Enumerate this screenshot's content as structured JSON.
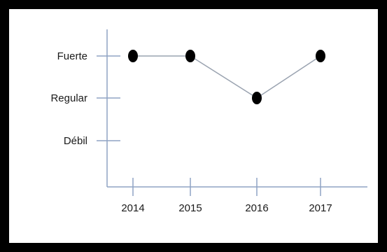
{
  "chart_data": {
    "type": "line",
    "categories": [
      "2014",
      "2015",
      "2016",
      "2017"
    ],
    "y_levels": [
      "Débil",
      "Regular",
      "Fuerte"
    ],
    "values": [
      "Fuerte",
      "Fuerte",
      "Regular",
      "Fuerte"
    ],
    "title": "",
    "xlabel": "",
    "ylabel": "",
    "grid": false,
    "legend": "none",
    "colors": {
      "line": "#9aa3b0",
      "marker": "#000000",
      "axis": "#8fa3c4",
      "frame": "#000000"
    }
  }
}
